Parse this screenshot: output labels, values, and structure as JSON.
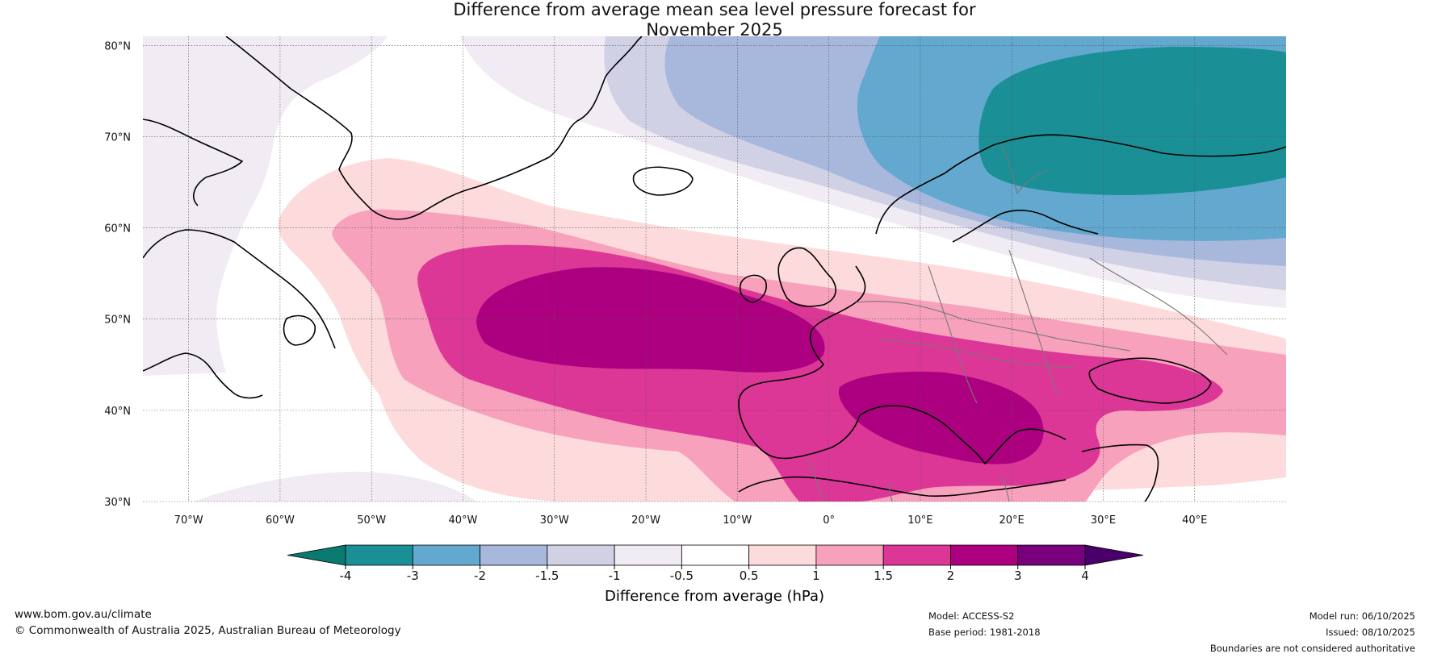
{
  "title": {
    "line1": "Difference from average mean sea level pressure forecast for",
    "line2": "November 2025"
  },
  "map": {
    "lat_range": [
      30,
      81
    ],
    "lon_range": [
      -75,
      50
    ],
    "lat_labels": [
      "30°N",
      "40°N",
      "50°N",
      "60°N",
      "70°N",
      "80°N"
    ],
    "lat_values": [
      30,
      40,
      50,
      60,
      70,
      80
    ],
    "lon_labels": [
      "70°W",
      "60°W",
      "50°W",
      "40°W",
      "30°W",
      "20°W",
      "10°W",
      "0°",
      "10°E",
      "20°E",
      "30°E",
      "40°E"
    ],
    "lon_values": [
      -70,
      -60,
      -50,
      -40,
      -30,
      -20,
      -10,
      0,
      10,
      20,
      30,
      40
    ]
  },
  "legend": {
    "unit_label": "Difference from average (hPa)",
    "ticks": [
      "-4",
      "-3",
      "-2",
      "-1.5",
      "-1",
      "-0.5",
      "0.5",
      "1",
      "1.5",
      "2",
      "3",
      "4"
    ],
    "colors": [
      "#0b7a6e",
      "#1a9096",
      "#63a8cf",
      "#a8b8dc",
      "#d1d1e6",
      "#f1ebf3",
      "#ffffff",
      "#fddbdc",
      "#f7a1bd",
      "#dc3797",
      "#ac0080",
      "#79007c",
      "#4a006b"
    ]
  },
  "footer": {
    "website": "www.bom.gov.au/climate",
    "copyright": "© Commonwealth of Australia 2025, Australian Bureau of Meteorology",
    "model": "Model: ACCESS-S2",
    "base_period": "Base period: 1981-2018",
    "model_run": "Model run: 06/10/2025",
    "issued": "Issued: 08/10/2025",
    "disclaimer": "Boundaries are not considered authoritative"
  }
}
